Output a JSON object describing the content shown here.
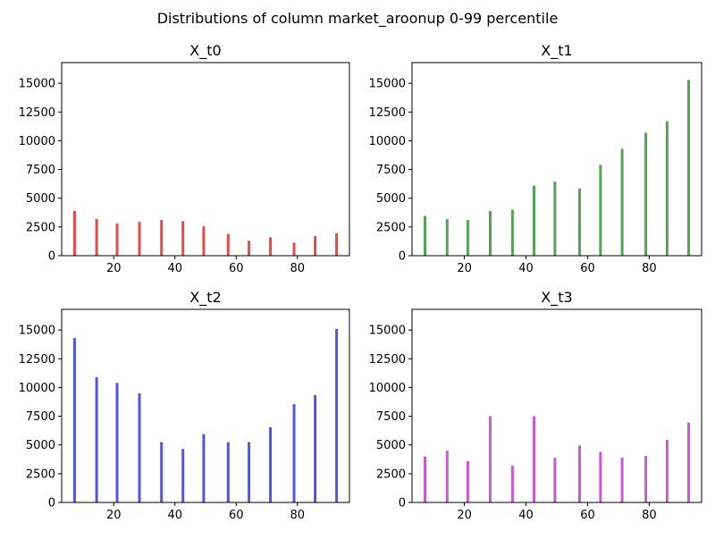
{
  "figure": {
    "title": "Distributions of column market_aroonup 0-99 percentile"
  },
  "chart_data": [
    {
      "type": "bar",
      "title": "X_t0",
      "xlabel": "",
      "ylabel": "",
      "color": "#e83f3f",
      "x": [
        7.2,
        14.4,
        21.1,
        28.4,
        35.6,
        42.6,
        49.4,
        57.4,
        64.2,
        71.2,
        78.9,
        85.8,
        92.8
      ],
      "values": [
        3900,
        3200,
        2800,
        2950,
        3100,
        3000,
        2550,
        1900,
        1300,
        1600,
        1150,
        1700,
        1950
      ],
      "xlim": [
        3,
        97
      ],
      "ylim": [
        0,
        16800
      ],
      "xticks": [
        20,
        40,
        60,
        80
      ],
      "yticks": [
        0,
        2500,
        5000,
        7500,
        10000,
        12500,
        15000
      ],
      "grid": false
    },
    {
      "type": "bar",
      "title": "X_t1",
      "xlabel": "",
      "ylabel": "",
      "color": "#4c9f4c",
      "x": [
        7.2,
        14.4,
        21.1,
        28.4,
        35.6,
        42.6,
        49.4,
        57.4,
        64.2,
        71.2,
        78.9,
        85.8,
        92.8
      ],
      "values": [
        3450,
        3200,
        3100,
        3900,
        4000,
        6100,
        6450,
        5850,
        7900,
        9300,
        10700,
        11700,
        15300
      ],
      "xlim": [
        3,
        97
      ],
      "ylim": [
        0,
        16800
      ],
      "xticks": [
        20,
        40,
        60,
        80
      ],
      "yticks": [
        0,
        2500,
        5000,
        7500,
        10000,
        12500,
        15000
      ],
      "grid": false
    },
    {
      "type": "bar",
      "title": "X_t2",
      "xlabel": "",
      "ylabel": "",
      "color": "#4b4be3",
      "x": [
        7.2,
        14.4,
        21.1,
        28.4,
        35.6,
        42.6,
        49.4,
        57.4,
        64.2,
        71.2,
        78.9,
        85.8,
        92.8
      ],
      "values": [
        14300,
        10900,
        10400,
        9500,
        5250,
        4650,
        5950,
        5250,
        5250,
        6550,
        8550,
        9350,
        15100
      ],
      "xlim": [
        3,
        97
      ],
      "ylim": [
        0,
        16800
      ],
      "xticks": [
        20,
        40,
        60,
        80
      ],
      "yticks": [
        0,
        2500,
        5000,
        7500,
        10000,
        12500,
        15000
      ],
      "grid": false
    },
    {
      "type": "bar",
      "title": "X_t3",
      "xlabel": "",
      "ylabel": "",
      "color": "#c94fd1",
      "x": [
        7.2,
        14.4,
        21.1,
        28.4,
        35.6,
        42.6,
        49.4,
        57.4,
        64.2,
        71.2,
        78.9,
        85.8,
        92.8
      ],
      "values": [
        4000,
        4500,
        3600,
        7500,
        3200,
        7500,
        3900,
        4950,
        4400,
        3900,
        4050,
        5450,
        6950
      ],
      "xlim": [
        3,
        97
      ],
      "ylim": [
        0,
        16800
      ],
      "xticks": [
        20,
        40,
        60,
        80
      ],
      "yticks": [
        0,
        2500,
        5000,
        7500,
        10000,
        12500,
        15000
      ],
      "grid": false
    }
  ]
}
